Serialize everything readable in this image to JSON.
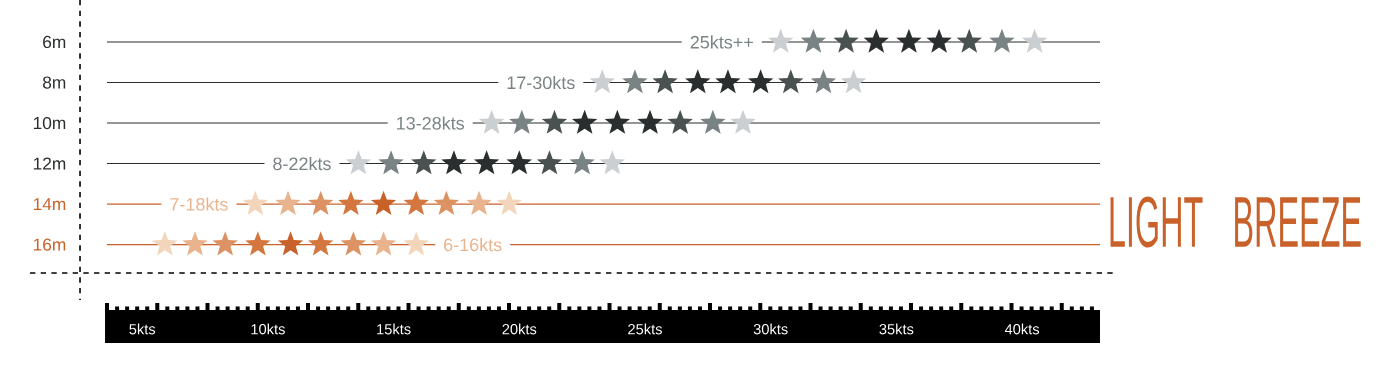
{
  "chart_data": {
    "type": "scatter",
    "orientation": "horizontal",
    "marker": "star",
    "grid": "y",
    "categories": [
      "6m",
      "8m",
      "10m",
      "12m",
      "14m",
      "16m"
    ],
    "xlim": [
      3.6,
      43.1
    ],
    "xticks": [
      {
        "value": 5,
        "label": "5kts"
      },
      {
        "value": 10,
        "label": "10kts"
      },
      {
        "value": 15,
        "label": "15kts"
      },
      {
        "value": 20,
        "label": "20kts"
      },
      {
        "value": 25,
        "label": "25kts"
      },
      {
        "value": 30,
        "label": "30kts"
      },
      {
        "value": 35,
        "label": "35kts"
      },
      {
        "value": 40,
        "label": "40kts"
      }
    ],
    "series": [
      {
        "values": [
          30.4,
          23.3,
          18.9,
          13.6,
          9.5,
          5.9
        ],
        "colors": [
          "#cbcfd1",
          "#cbcfd1",
          "#cbcfd1",
          "#cbcfd1",
          "#f3d5bb",
          "#f3d5bb"
        ]
      },
      {
        "values": [
          31.7,
          24.6,
          20.1,
          14.9,
          10.8,
          7.1
        ],
        "colors": [
          "#7a8384",
          "#7a8384",
          "#7a8384",
          "#7a8384",
          "#e9b38e",
          "#e9b38e"
        ]
      },
      {
        "values": [
          33.0,
          25.8,
          21.4,
          16.2,
          12.1,
          8.3
        ],
        "colors": [
          "#4a5251",
          "#4a5251",
          "#4a5251",
          "#4a5251",
          "#dd9263",
          "#dd9263"
        ]
      },
      {
        "values": [
          34.2,
          27.1,
          22.6,
          17.4,
          13.3,
          9.6
        ],
        "colors": [
          "#2a2e2f",
          "#2a2e2f",
          "#2a2e2f",
          "#2a2e2f",
          "#d4773f",
          "#d4773f"
        ]
      },
      {
        "values": [
          35.5,
          28.3,
          23.9,
          18.7,
          14.6,
          10.9
        ],
        "colors": [
          "#2a2e2f",
          "#2a2e2f",
          "#2a2e2f",
          "#2a2e2f",
          "#c9612b",
          "#c9612b"
        ]
      },
      {
        "values": [
          36.7,
          29.6,
          25.2,
          20.0,
          15.9,
          12.1
        ],
        "colors": [
          "#2a2e2f",
          "#2a2e2f",
          "#2a2e2f",
          "#2a2e2f",
          "#d4773f",
          "#d4773f"
        ]
      },
      {
        "values": [
          37.9,
          30.8,
          26.4,
          21.2,
          17.1,
          13.4
        ],
        "colors": [
          "#4a5251",
          "#4a5251",
          "#4a5251",
          "#4a5251",
          "#dd9263",
          "#dd9263"
        ]
      },
      {
        "values": [
          39.2,
          32.1,
          27.7,
          22.5,
          18.4,
          14.6
        ],
        "colors": [
          "#7a8384",
          "#7a8384",
          "#7a8384",
          "#7a8384",
          "#e9b38e",
          "#e9b38e"
        ]
      },
      {
        "values": [
          40.5,
          33.3,
          28.9,
          23.7,
          19.6,
          15.9
        ],
        "colors": [
          "#cbcfd1",
          "#cbcfd1",
          "#cbcfd1",
          "#cbcfd1",
          "#f3d5bb",
          "#f3d5bb"
        ]
      }
    ],
    "annotations": [
      "25kts++",
      "17-30kts",
      "13-28kts",
      "8-22kts",
      "7-18kts",
      "6-16kts",
      "LIGHT BREEZE"
    ]
  }
}
